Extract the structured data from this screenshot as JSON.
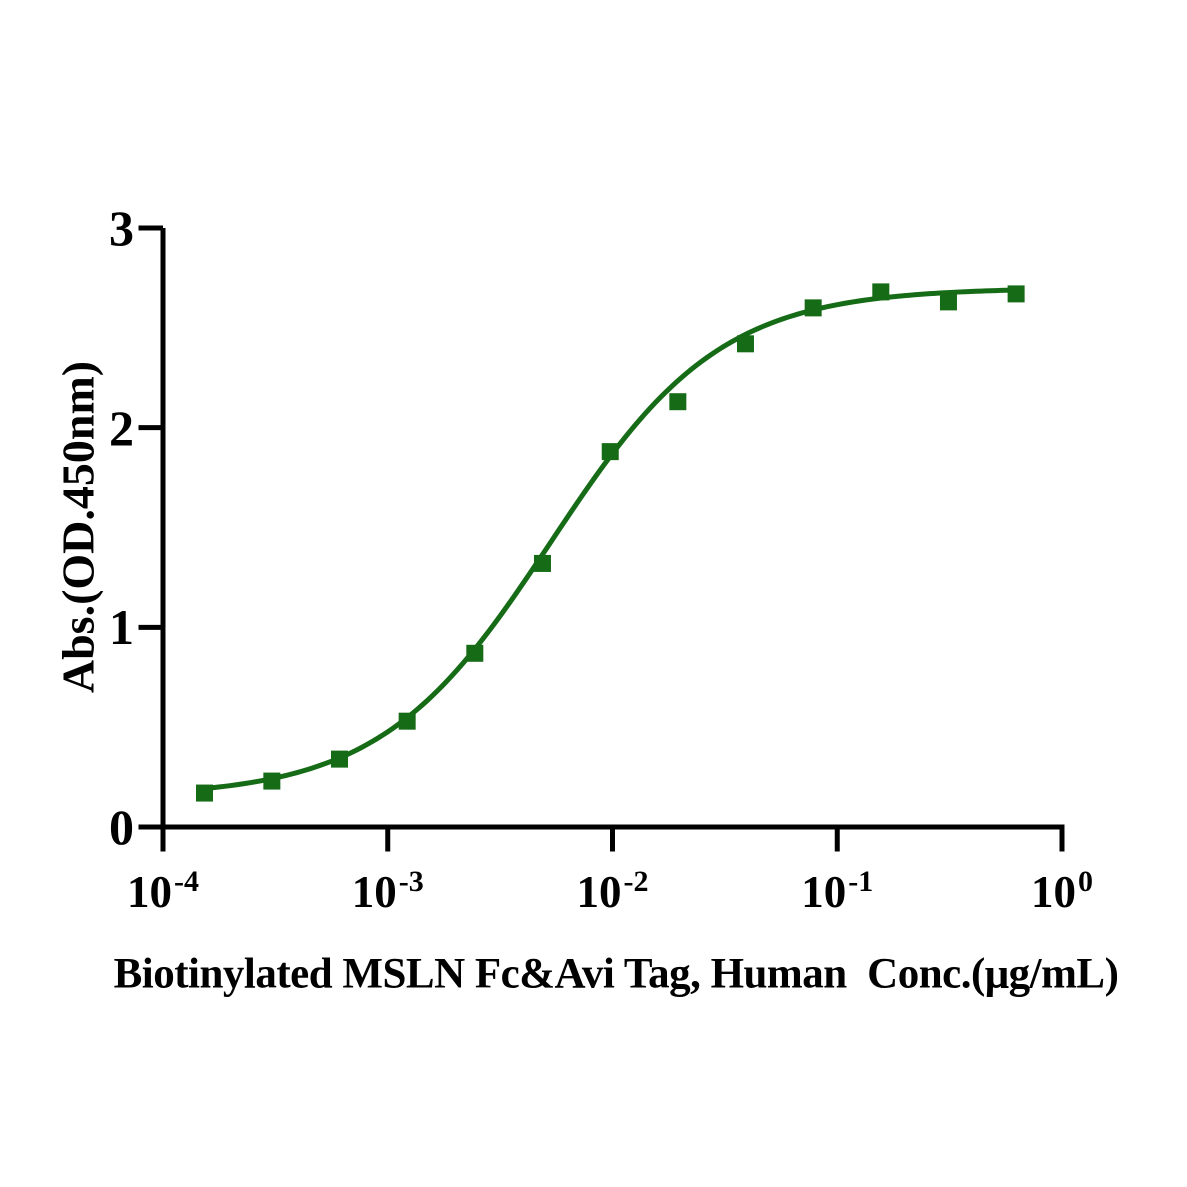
{
  "figure": {
    "background": "#ffffff"
  },
  "chart_data": {
    "type": "scatter",
    "subtype": "sigmoidal-dose-response-with-fit-curve",
    "title": "",
    "xlabel": "Biotinylated MSLN Fc&Avi Tag, Human  Conc.(μg/mL)",
    "ylabel": "Abs.(OD.450nm)",
    "x_scale": "log10",
    "xlim": [
      0.0001,
      1
    ],
    "ylim": [
      0,
      3
    ],
    "grid": false,
    "legend": "none",
    "x_tick_base": "10",
    "x_tick_exponents": [
      "-4",
      "-3",
      "-2",
      "-1",
      "0"
    ],
    "y_ticks": [
      "0",
      "1",
      "2",
      "3"
    ],
    "marker": "square",
    "color": "#166B16",
    "axis_color": "#000000",
    "points": {
      "x": [
        0.000153,
        0.000305,
        0.00061,
        0.00122,
        0.00244,
        0.00488,
        0.00977,
        0.01953,
        0.03906,
        0.07813,
        0.15625,
        0.3125,
        0.625
      ],
      "y": [
        0.17,
        0.23,
        0.34,
        0.53,
        0.87,
        1.32,
        1.88,
        2.13,
        2.42,
        2.6,
        2.68,
        2.63,
        2.67
      ]
    },
    "fit": {
      "model": "4PL",
      "bottom": 0.15,
      "top": 2.7,
      "ec50": 0.0053,
      "hill": 1.15
    }
  }
}
